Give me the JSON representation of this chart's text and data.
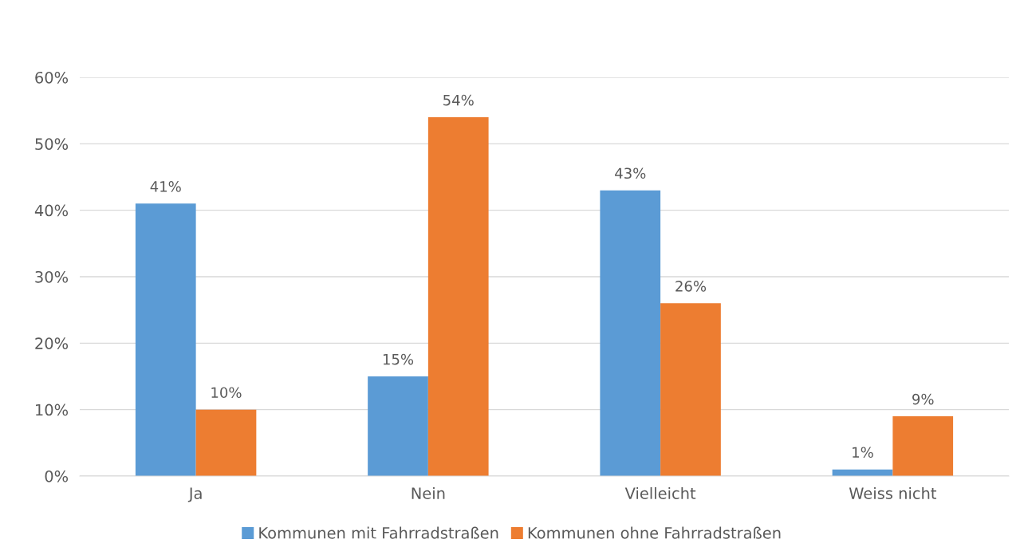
{
  "chart_data": {
    "type": "bar",
    "categories": [
      "Ja",
      "Nein",
      "Vielleicht",
      "Weiss nicht"
    ],
    "series": [
      {
        "name": "Kommunen mit Fahrradstraßen",
        "color": "#5b9bd5",
        "values": [
          41,
          15,
          43,
          1
        ],
        "value_labels": [
          "41%",
          "15%",
          "43%",
          "1%"
        ]
      },
      {
        "name": "Kommunen ohne Fahrradstraßen",
        "color": "#ed7d31",
        "values": [
          10,
          54,
          26,
          9
        ],
        "value_labels": [
          "10%",
          "54%",
          "26%",
          "9%"
        ]
      }
    ],
    "ylim": [
      0,
      60
    ],
    "yticks": [
      {
        "value": 0,
        "label": "0%"
      },
      {
        "value": 10,
        "label": "10%"
      },
      {
        "value": 20,
        "label": "20%"
      },
      {
        "value": 30,
        "label": "30%"
      },
      {
        "value": 40,
        "label": "40%"
      },
      {
        "value": 50,
        "label": "50%"
      },
      {
        "value": 60,
        "label": "60%"
      }
    ],
    "grid": "y",
    "legend": "bottom"
  }
}
